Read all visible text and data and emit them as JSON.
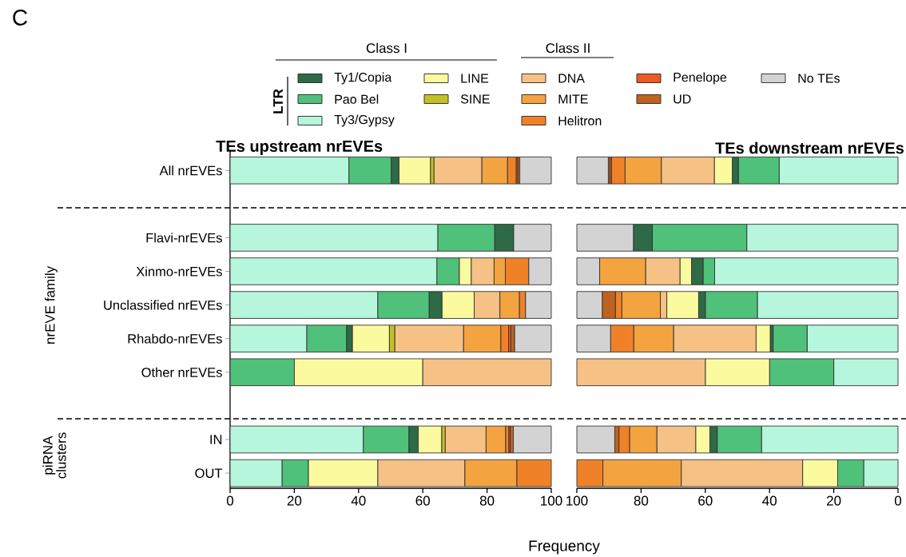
{
  "chart_data": [
    {
      "type": "bar",
      "orientation": "horizontal",
      "stacked": true,
      "title": "TEs upstream nrEVEs",
      "xlabel": "Frequency",
      "legend": "top",
      "categories": [
        "All nrEVEs",
        null,
        "Flavi-nrEVEs",
        "Xinmo-nrEVEs",
        "Unclassified nrEVEs",
        "Rhabdo-nrEVEs",
        "Other nrEVEs",
        null,
        "IN",
        "OUT"
      ],
      "xlim": [
        0,
        100
      ],
      "xticks": [
        0,
        20,
        40,
        60,
        80,
        100
      ],
      "annotations": [
        "C",
        "Class I",
        "Class II",
        "LTR",
        "nrEVE family",
        "piRNA clusters"
      ],
      "series": [
        {
          "name": "Ty3/Gypsy",
          "color": "#b5f6dc",
          "values": [
            37.0,
            null,
            64.7,
            64.4,
            46.0,
            23.9,
            null,
            null,
            41.5,
            16.2
          ]
        },
        {
          "name": "Pao Bel",
          "color": "#4fc17a",
          "values": [
            13.2,
            null,
            17.7,
            7.0,
            16.0,
            12.4,
            20,
            null,
            14.2,
            8.2
          ]
        },
        {
          "name": "Ty1/Copia",
          "color": "#2d6a45",
          "values": [
            2.4,
            null,
            5.9,
            null,
            4.0,
            1.8,
            null,
            null,
            2.9,
            null
          ]
        },
        {
          "name": "LINE",
          "color": "#fcfa9e",
          "values": [
            9.8,
            null,
            null,
            3.7,
            10.0,
            11.5,
            40,
            null,
            7.3,
            21.6
          ]
        },
        {
          "name": "SINE",
          "color": "#c3c024",
          "values": [
            1.1,
            null,
            null,
            null,
            null,
            1.7,
            null,
            null,
            1.1,
            null
          ]
        },
        {
          "name": "DNA",
          "color": "#f5c185",
          "values": [
            14.9,
            null,
            null,
            7.1,
            8.0,
            21.4,
            40,
            null,
            12.7,
            27.1
          ]
        },
        {
          "name": "MITE",
          "color": "#f3a33f",
          "values": [
            8.0,
            null,
            null,
            3.5,
            6.1,
            11.6,
            null,
            null,
            6.1,
            16.2
          ]
        },
        {
          "name": "Helitron",
          "color": "#ef8228",
          "values": [
            2.7,
            null,
            null,
            7.3,
            1.9,
            2.4,
            null,
            null,
            1.0,
            10.7
          ]
        },
        {
          "name": "Penelope",
          "color": "#ea5b25",
          "values": [
            0.5,
            null,
            null,
            null,
            null,
            0.7,
            null,
            null,
            0.4,
            null
          ]
        },
        {
          "name": "UD",
          "color": "#c0621f",
          "values": [
            0.6,
            null,
            null,
            null,
            null,
            1.2,
            null,
            null,
            1.0,
            null
          ]
        },
        {
          "name": "No TEs",
          "color": "#d3d3d3",
          "values": [
            9.8,
            null,
            11.7,
            7.0,
            8.0,
            11.4,
            null,
            null,
            11.8,
            null
          ]
        }
      ]
    },
    {
      "type": "bar",
      "orientation": "horizontal",
      "stacked": true,
      "title": "TEs downstream nrEVEs",
      "tick_labels": "x",
      "categories": [
        null,
        null,
        null,
        null,
        null,
        null,
        null,
        null,
        null,
        null
      ],
      "xlim": [
        100,
        0
      ],
      "xticks": [
        0,
        20,
        40,
        60,
        80,
        100
      ],
      "series": [
        {
          "color": "#b5f6dc",
          "values": [
            37.0,
            null,
            47.1,
            57.1,
            43.8,
            28.3,
            20,
            null,
            42.5,
            10.7
          ]
        },
        {
          "color": "#4fc17a",
          "values": [
            12.7,
            null,
            29.4,
            3.6,
            16.2,
            10.6,
            20,
            null,
            13.8,
            8.1
          ]
        },
        {
          "color": "#2d6a45",
          "values": [
            1.9,
            null,
            5.9,
            3.6,
            2.1,
            0.9,
            null,
            null,
            2.3,
            null
          ]
        },
        {
          "color": "#fcfa9e",
          "values": [
            5.6,
            null,
            null,
            3.6,
            9.9,
            4.4,
            20,
            null,
            4.4,
            10.9
          ]
        },
        {
          "color": "#f5c185",
          "values": [
            16.5,
            null,
            null,
            10.7,
            2.0,
            25.7,
            40,
            null,
            12.1,
            37.8
          ]
        },
        {
          "color": "#f3a33f",
          "values": [
            11.3,
            null,
            null,
            14.3,
            12.0,
            12.4,
            null,
            null,
            8.5,
            24.4
          ]
        },
        {
          "color": "#ef8228",
          "values": [
            4.2,
            null,
            null,
            null,
            2.0,
            7.2,
            null,
            null,
            3.3,
            8.1
          ]
        },
        {
          "color": "#ea5b25",
          "values": [
            0.5,
            null,
            null,
            null,
            null,
            null,
            null,
            null,
            null,
            null
          ]
        },
        {
          "color": "#c0621f",
          "values": [
            0.5,
            null,
            null,
            null,
            4.1,
            null,
            null,
            null,
            1.3,
            null
          ]
        },
        {
          "color": "#d3d3d3",
          "values": [
            9.8,
            null,
            17.6,
            7.1,
            7.9,
            10.5,
            null,
            null,
            11.8,
            null
          ]
        }
      ]
    }
  ]
}
